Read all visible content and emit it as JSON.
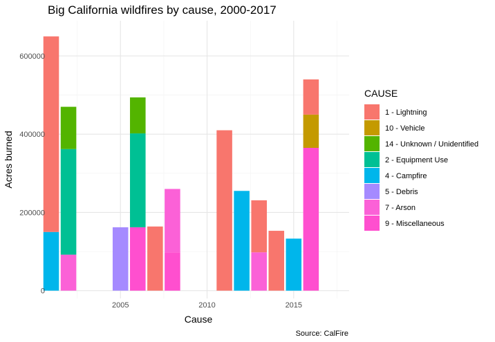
{
  "chart_data": {
    "type": "bar",
    "stacked": true,
    "title": "Big California wildfires by cause, 2000-2017",
    "xlabel": "Cause",
    "ylabel": "Acres burned",
    "caption": "Source: CalFire",
    "xlim": [
      2000.8,
      2018.2
    ],
    "ylim": [
      -20000,
      690000
    ],
    "x_ticks": [
      2005,
      2010,
      2015
    ],
    "y_ticks": [
      0,
      200000,
      400000,
      600000
    ],
    "grid": true,
    "legend": {
      "title": "CAUSE",
      "position": "right",
      "entries": [
        {
          "key": "1",
          "label": "1 - Lightning",
          "color": "#F8766D"
        },
        {
          "key": "10",
          "label": "10 - Vehicle",
          "color": "#C49A00"
        },
        {
          "key": "14",
          "label": "14 - Unknown / Unidentified",
          "color": "#53B400"
        },
        {
          "key": "2",
          "label": "2 - Equipment Use",
          "color": "#00C094"
        },
        {
          "key": "4",
          "label": "4 - Campfire",
          "color": "#00B6EB"
        },
        {
          "key": "5",
          "label": "5 - Debris",
          "color": "#A58AFF"
        },
        {
          "key": "7",
          "label": "7 - Arson",
          "color": "#FB61D7"
        },
        {
          "key": "9",
          "label": "9 - Miscellaneous",
          "color": "#FF4FCF"
        }
      ]
    },
    "bars": [
      {
        "year": 2001,
        "segments": [
          {
            "cause": "4",
            "value": 150000
          },
          {
            "cause": "1",
            "value": 500000
          }
        ]
      },
      {
        "year": 2002,
        "segments": [
          {
            "cause": "7",
            "value": 92000
          },
          {
            "cause": "2",
            "value": 270000
          },
          {
            "cause": "14",
            "value": 108000
          }
        ]
      },
      {
        "year": 2005,
        "segments": [
          {
            "cause": "5",
            "value": 162000
          }
        ]
      },
      {
        "year": 2006,
        "segments": [
          {
            "cause": "9",
            "value": 162000
          },
          {
            "cause": "2",
            "value": 240000
          },
          {
            "cause": "14",
            "value": 92000
          }
        ]
      },
      {
        "year": 2007,
        "segments": [
          {
            "cause": "1",
            "value": 164000
          }
        ]
      },
      {
        "year": 2008,
        "segments": [
          {
            "cause": "9",
            "value": 98000
          },
          {
            "cause": "7",
            "value": 162000
          }
        ]
      },
      {
        "year": 2011,
        "segments": [
          {
            "cause": "1",
            "value": 410000
          }
        ]
      },
      {
        "year": 2012,
        "segments": [
          {
            "cause": "4",
            "value": 255000
          }
        ]
      },
      {
        "year": 2013,
        "segments": [
          {
            "cause": "7",
            "value": 98000
          },
          {
            "cause": "1",
            "value": 133000
          }
        ]
      },
      {
        "year": 2014,
        "segments": [
          {
            "cause": "1",
            "value": 153000
          }
        ]
      },
      {
        "year": 2015,
        "segments": [
          {
            "cause": "4",
            "value": 133000
          }
        ]
      },
      {
        "year": 2016,
        "segments": [
          {
            "cause": "9",
            "value": 365000
          },
          {
            "cause": "10",
            "value": 85000
          },
          {
            "cause": "1",
            "value": 90000
          }
        ]
      }
    ]
  }
}
